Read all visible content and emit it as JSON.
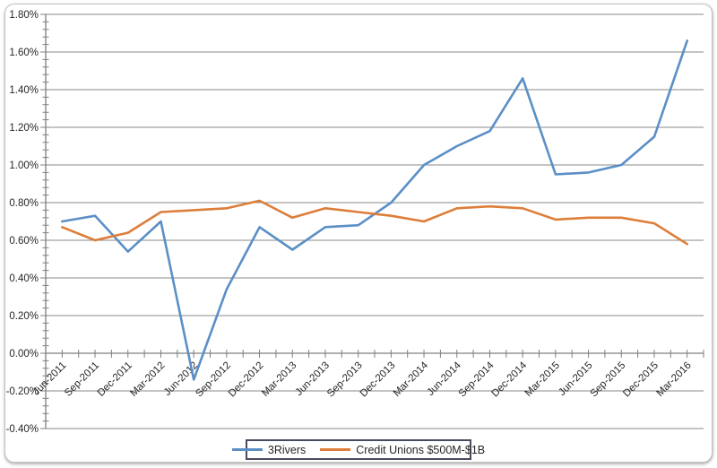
{
  "chart_data": {
    "type": "line",
    "title": "",
    "xlabel": "",
    "ylabel": "",
    "categories": [
      "Jun-2011",
      "Sep-2011",
      "Dec-2011",
      "Mar-2012",
      "Jun-2012",
      "Sep-2012",
      "Dec-2012",
      "Mar-2013",
      "Jun-2013",
      "Sep-2013",
      "Dec-2013",
      "Mar-2014",
      "Jun-2014",
      "Sep-2014",
      "Dec-2014",
      "Mar-2015",
      "Jun-2015",
      "Sep-2015",
      "Dec-2015",
      "Mar-2016"
    ],
    "series": [
      {
        "name": "3Rivers",
        "color": "#5b8fc6",
        "values": [
          0.7,
          0.73,
          0.54,
          0.7,
          -0.14,
          0.34,
          0.67,
          0.55,
          0.67,
          0.68,
          0.8,
          1.0,
          1.1,
          1.18,
          1.46,
          0.95,
          0.96,
          1.0,
          1.15,
          1.66
        ]
      },
      {
        "name": "Credit Unions $500M-$1B",
        "color": "#dd7e3a",
        "values": [
          0.67,
          0.6,
          0.64,
          0.75,
          0.76,
          0.77,
          0.81,
          0.72,
          0.77,
          0.75,
          0.73,
          0.7,
          0.77,
          0.78,
          0.77,
          0.71,
          0.72,
          0.72,
          0.69,
          0.58
        ]
      }
    ],
    "ylim": [
      -0.4,
      1.8
    ],
    "y_tick_step": 0.2,
    "y_minor_step": 0.04,
    "y_tick_suffix": "%",
    "y_tick_decimals": 2,
    "grid": true,
    "legend_position": "bottom-center",
    "y_tick_labels": [
      "-0.40%",
      "-0.20%",
      "0.00%",
      "0.20%",
      "0.40%",
      "0.60%",
      "0.80%",
      "1.00%",
      "1.20%",
      "1.40%",
      "1.60%",
      "1.80%"
    ]
  },
  "colors": {
    "gridline": "#8a8a8a",
    "axis": "#808080",
    "text": "#262626",
    "frame_border": "#c3c3c3",
    "legend_border": "#474b5e",
    "background": "#ffffff"
  }
}
